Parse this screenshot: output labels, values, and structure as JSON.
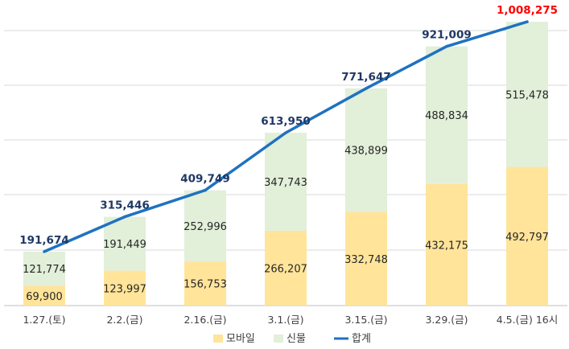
{
  "chart_data": {
    "type": "bar",
    "stacked": true,
    "categories": [
      "1.27.(토)",
      "2.2.(금)",
      "2.16.(금)",
      "3.1.(금)",
      "3.15.(금)",
      "3.29.(금)",
      "4.5.(금) 16시"
    ],
    "series": [
      {
        "name": "모바일",
        "color": "#ffe49a",
        "values": [
          69900,
          123997,
          156753,
          266207,
          332748,
          432175,
          492797
        ]
      },
      {
        "name": "신물",
        "color": "#e2efd9",
        "values": [
          121774,
          191449,
          252996,
          347743,
          438899,
          488834,
          515478
        ]
      }
    ],
    "line": {
      "name": "합계",
      "color": "#1f72c0",
      "values": [
        191674,
        315446,
        409749,
        613950,
        771647,
        921009,
        1008275
      ],
      "labels": [
        "191,674",
        "315,446",
        "409,749",
        "613,950",
        "771,647",
        "921,009",
        "1,008,275"
      ],
      "highlight_last_color": "#ff0000"
    },
    "segment_labels": {
      "모바일": [
        "69,900",
        "123,997",
        "156,753",
        "266,207",
        "332,748",
        "432,175",
        "492,797"
      ],
      "신물": [
        "121,774",
        "191,449",
        "252,996",
        "347,743",
        "438,899",
        "488,834",
        "515,478"
      ]
    },
    "ylim": [
      0,
      1000000
    ],
    "grid": true,
    "legend": [
      "모바일",
      "신물",
      "합계"
    ],
    "legend_position": "bottom"
  }
}
